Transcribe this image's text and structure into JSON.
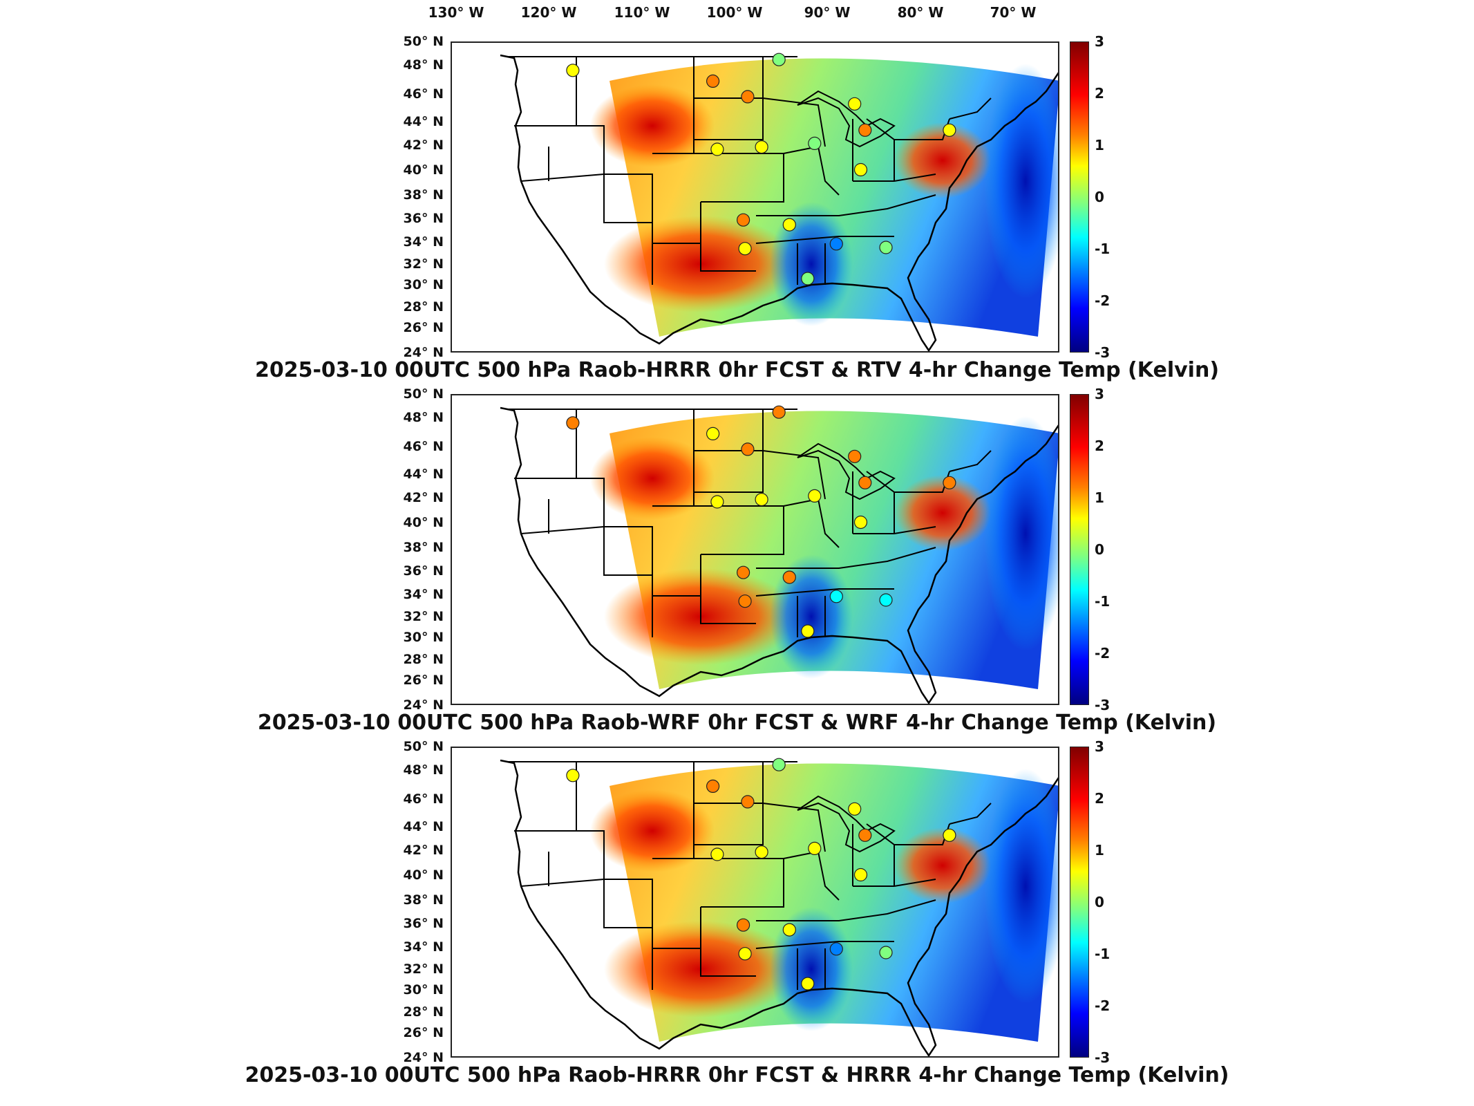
{
  "figure": {
    "longitude_labels": [
      "130° W",
      "120° W",
      "110° W",
      "100° W",
      "90° W",
      "80° W",
      "70° W"
    ],
    "latitude_labels": [
      "50° N",
      "48° N",
      "46° N",
      "44° N",
      "42° N",
      "40° N",
      "38° N",
      "36° N",
      "34° N",
      "32° N",
      "30° N",
      "28° N",
      "26° N",
      "24° N"
    ],
    "colorbar": {
      "ticks": [
        "3",
        "2",
        "1",
        "0",
        "-1",
        "-2",
        "-3"
      ],
      "min": -3,
      "max": 3,
      "colormap": "jet",
      "colors": [
        "#800000",
        "#ff0000",
        "#ff8000",
        "#ffff00",
        "#80ff80",
        "#00ffff",
        "#0080ff",
        "#0000ff",
        "#000080"
      ]
    }
  },
  "panels": [
    {
      "title": "2025-03-10 00UTC 500 hPa Raob-HRRR 0hr FCST & RTV 4-hr Change Temp (Kelvin)",
      "stations": [
        {
          "lon": -117.1,
          "lat": 47.7,
          "value": 0.8
        },
        {
          "lon": -101.0,
          "lat": 46.8,
          "value": 1.3
        },
        {
          "lon": -97.0,
          "lat": 45.5,
          "value": 1.4
        },
        {
          "lon": -93.4,
          "lat": 48.6,
          "value": 0.0
        },
        {
          "lon": -100.5,
          "lat": 41.1,
          "value": 0.9
        },
        {
          "lon": -95.4,
          "lat": 41.3,
          "value": 0.6
        },
        {
          "lon": -84.7,
          "lat": 44.9,
          "value": 1.0
        },
        {
          "lon": -83.5,
          "lat": 42.7,
          "value": 1.4
        },
        {
          "lon": -73.8,
          "lat": 42.7,
          "value": 1.0
        },
        {
          "lon": -89.3,
          "lat": 41.6,
          "value": 0.3
        },
        {
          "lon": -84.0,
          "lat": 39.4,
          "value": 0.6
        },
        {
          "lon": -97.5,
          "lat": 35.2,
          "value": 1.5
        },
        {
          "lon": -97.3,
          "lat": 32.8,
          "value": 0.9
        },
        {
          "lon": -92.2,
          "lat": 34.8,
          "value": 1.1
        },
        {
          "lon": -86.8,
          "lat": 33.2,
          "value": -1.8
        },
        {
          "lon": -81.1,
          "lat": 32.9,
          "value": 0.2
        },
        {
          "lon": -90.1,
          "lat": 30.3,
          "value": 0.3
        }
      ]
    },
    {
      "title": "2025-03-10 00UTC 500 hPa Raob-WRF 0hr FCST & WRF 4-hr Change Temp (Kelvin)",
      "stations": [
        {
          "lon": -117.1,
          "lat": 47.7,
          "value": 1.6
        },
        {
          "lon": -101.0,
          "lat": 46.8,
          "value": 1.1
        },
        {
          "lon": -97.0,
          "lat": 45.5,
          "value": 1.6
        },
        {
          "lon": -93.4,
          "lat": 48.6,
          "value": 1.4
        },
        {
          "lon": -100.5,
          "lat": 41.1,
          "value": 0.9
        },
        {
          "lon": -95.4,
          "lat": 41.3,
          "value": 0.8
        },
        {
          "lon": -84.7,
          "lat": 44.9,
          "value": 1.5
        },
        {
          "lon": -83.5,
          "lat": 42.7,
          "value": 1.4
        },
        {
          "lon": -73.8,
          "lat": 42.7,
          "value": 1.3
        },
        {
          "lon": -89.3,
          "lat": 41.6,
          "value": 0.5
        },
        {
          "lon": -84.0,
          "lat": 39.4,
          "value": 0.6
        },
        {
          "lon": -97.5,
          "lat": 35.2,
          "value": 1.7
        },
        {
          "lon": -97.3,
          "lat": 32.8,
          "value": 1.6
        },
        {
          "lon": -92.2,
          "lat": 34.8,
          "value": 1.4
        },
        {
          "lon": -86.8,
          "lat": 33.2,
          "value": -0.6
        },
        {
          "lon": -81.1,
          "lat": 32.9,
          "value": -1.0
        },
        {
          "lon": -90.1,
          "lat": 30.3,
          "value": 0.5
        }
      ]
    },
    {
      "title": "2025-03-10 00UTC 500 hPa Raob-HRRR 0hr FCST & HRRR 4-hr Change Temp (Kelvin)",
      "stations": [
        {
          "lon": -117.1,
          "lat": 47.7,
          "value": 0.8
        },
        {
          "lon": -101.0,
          "lat": 46.8,
          "value": 1.3
        },
        {
          "lon": -97.0,
          "lat": 45.5,
          "value": 1.2
        },
        {
          "lon": -93.4,
          "lat": 48.6,
          "value": 0.0
        },
        {
          "lon": -100.5,
          "lat": 41.1,
          "value": 0.9
        },
        {
          "lon": -95.4,
          "lat": 41.3,
          "value": 0.7
        },
        {
          "lon": -84.7,
          "lat": 44.9,
          "value": 1.0
        },
        {
          "lon": -83.5,
          "lat": 42.7,
          "value": 1.3
        },
        {
          "lon": -73.8,
          "lat": 42.7,
          "value": 1.0
        },
        {
          "lon": -89.3,
          "lat": 41.6,
          "value": 0.4
        },
        {
          "lon": -84.0,
          "lat": 39.4,
          "value": 0.6
        },
        {
          "lon": -97.5,
          "lat": 35.2,
          "value": 1.5
        },
        {
          "lon": -97.3,
          "lat": 32.8,
          "value": 0.9
        },
        {
          "lon": -92.2,
          "lat": 34.8,
          "value": 1.0
        },
        {
          "lon": -86.8,
          "lat": 33.2,
          "value": -1.8
        },
        {
          "lon": -81.1,
          "lat": 32.9,
          "value": 0.3
        },
        {
          "lon": -90.1,
          "lat": 30.3,
          "value": 0.5
        }
      ]
    }
  ]
}
